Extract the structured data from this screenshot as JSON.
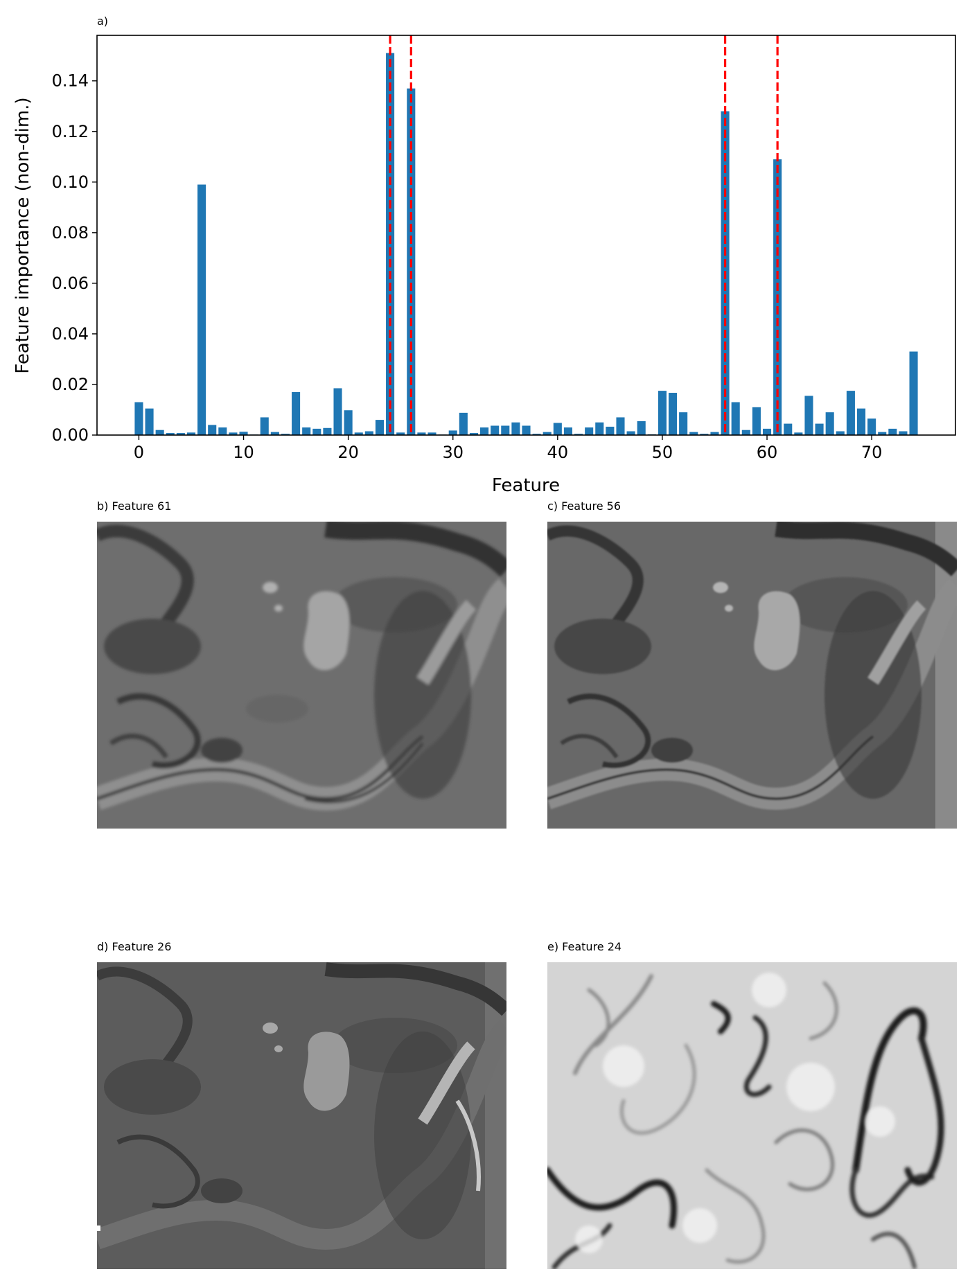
{
  "chart_data": {
    "type": "bar",
    "panel_label": "a)",
    "xlabel": "Feature",
    "ylabel": "Feature importance (non-dim.)",
    "xlim": [
      -4,
      78
    ],
    "ylim": [
      0,
      0.158
    ],
    "xticks": [
      0,
      10,
      20,
      30,
      40,
      50,
      60,
      70
    ],
    "yticks": [
      0.0,
      0.02,
      0.04,
      0.06,
      0.08,
      0.1,
      0.12,
      0.14
    ],
    "ytick_labels": [
      "0.00",
      "0.02",
      "0.04",
      "0.06",
      "0.08",
      "0.10",
      "0.12",
      "0.14"
    ],
    "bar_color": "#1f77b4",
    "highlight_color": "#ff0000",
    "highlight_features": [
      24,
      26,
      56,
      61
    ],
    "x": [
      0,
      1,
      2,
      3,
      4,
      5,
      6,
      7,
      8,
      9,
      10,
      11,
      12,
      13,
      14,
      15,
      16,
      17,
      18,
      19,
      20,
      21,
      22,
      23,
      24,
      25,
      26,
      27,
      28,
      29,
      30,
      31,
      32,
      33,
      34,
      35,
      36,
      37,
      38,
      39,
      40,
      41,
      42,
      43,
      44,
      45,
      46,
      47,
      48,
      49,
      50,
      51,
      52,
      53,
      54,
      55,
      56,
      57,
      58,
      59,
      60,
      61,
      62,
      63,
      64,
      65,
      66,
      67,
      68,
      69,
      70,
      71,
      72,
      73,
      74
    ],
    "values": [
      0.013,
      0.0105,
      0.002,
      0.0008,
      0.0008,
      0.001,
      0.099,
      0.004,
      0.003,
      0.001,
      0.0013,
      0.0002,
      0.007,
      0.0012,
      0.0005,
      0.017,
      0.003,
      0.0025,
      0.0028,
      0.0185,
      0.0098,
      0.001,
      0.0015,
      0.006,
      0.151,
      0.001,
      0.137,
      0.001,
      0.001,
      0.0002,
      0.0018,
      0.0088,
      0.0008,
      0.003,
      0.0037,
      0.0037,
      0.005,
      0.0037,
      0.0005,
      0.0012,
      0.0048,
      0.003,
      0.0005,
      0.003,
      0.005,
      0.0033,
      0.007,
      0.0015,
      0.0055,
      0.0003,
      0.0175,
      0.0167,
      0.009,
      0.0012,
      0.0005,
      0.0012,
      0.128,
      0.013,
      0.002,
      0.011,
      0.0025,
      0.109,
      0.0045,
      0.001,
      0.0155,
      0.0045,
      0.009,
      0.0015,
      0.0175,
      0.0105,
      0.0065,
      0.0012,
      0.0025,
      0.0015,
      0.033
    ]
  },
  "panels": [
    {
      "title": "b) Feature 61"
    },
    {
      "title": "c) Feature 56"
    },
    {
      "title": "d) Feature 26"
    },
    {
      "title": "e) Feature 24"
    }
  ]
}
